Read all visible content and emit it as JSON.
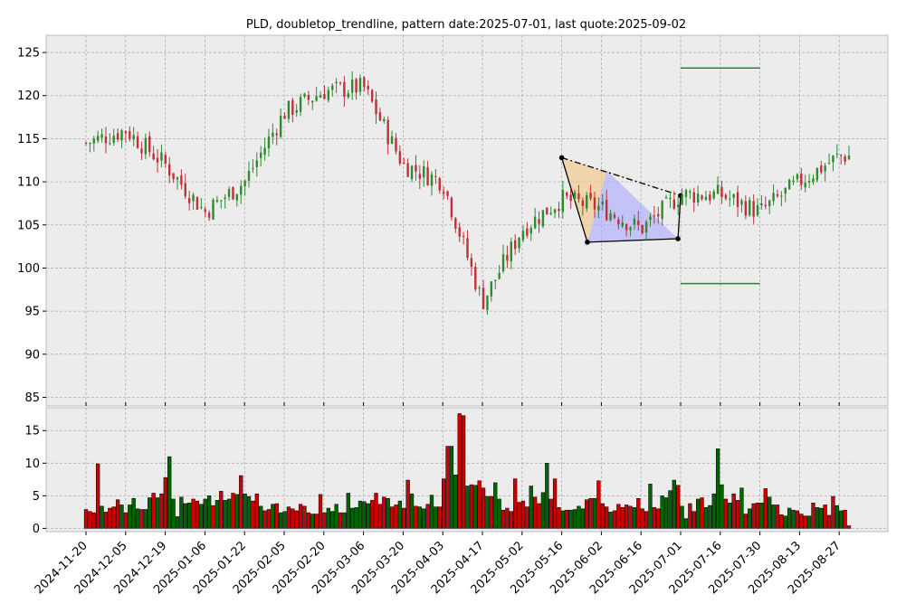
{
  "chart_data": [
    {
      "panel": "price",
      "type": "candlestick",
      "title": "PLD, doubletop_trendline, pattern date:2025-07-01, last quote:2025-09-02",
      "xlabel": "",
      "ylabel": "",
      "ylim": [
        84,
        127
      ],
      "yticks": [
        85,
        90,
        95,
        100,
        105,
        110,
        115,
        120,
        125
      ],
      "grid": true,
      "dates": [
        "2024-11-20",
        "2024-12-05",
        "2024-12-19",
        "2025-01-06",
        "2025-01-22",
        "2025-02-05",
        "2025-02-20",
        "2025-03-06",
        "2025-03-20",
        "2025-04-03",
        "2025-04-17",
        "2025-05-02",
        "2025-05-16",
        "2025-06-02",
        "2025-06-16",
        "2025-07-01",
        "2025-07-16",
        "2025-07-30",
        "2025-08-13",
        "2025-08-27"
      ],
      "closes": [
        114.5,
        116.0,
        112.0,
        106.5,
        110.0,
        118.0,
        120.5,
        121.0,
        112.0,
        110.0,
        96.0,
        104.5,
        108.0,
        107.0,
        104.5,
        108.5,
        108.5,
        106.5,
        110.0,
        113.0
      ],
      "pattern_points": [
        {
          "date": "2025-05-16",
          "value": 112.8
        },
        {
          "date": "2025-05-27",
          "value": 103.0
        },
        {
          "date": "2025-06-30",
          "value": 103.4
        },
        {
          "date": "2025-07-01",
          "value": 108.4
        }
      ],
      "trendline": {
        "start": {
          "date": "2025-05-16",
          "value": 112.8
        },
        "end": {
          "date": "2025-07-01",
          "value": 108.4
        }
      },
      "target_upper": 123.2,
      "target_lower": 98.2,
      "tick_labels": [
        "2024-11-20",
        "2024-12-05",
        "2024-12-19",
        "2025-01-06",
        "2025-01-22",
        "2025-02-05",
        "2025-02-20",
        "2025-03-06",
        "2025-03-20",
        "2025-04-03",
        "2025-04-17",
        "2025-05-02",
        "2025-05-16",
        "2025-06-02",
        "2025-06-16",
        "2025-07-01",
        "2025-07-16",
        "2025-07-30",
        "2025-08-13",
        "2025-08-27"
      ]
    },
    {
      "panel": "volume",
      "type": "bar",
      "ylim": [
        -0.5,
        18.5
      ],
      "yticks": [
        0,
        5,
        10,
        15
      ],
      "volumes": [
        2.9,
        2.6,
        2.4,
        9.9,
        3.4,
        2.5,
        3.1,
        3.3,
        4.4,
        3.6,
        2.4,
        3.6,
        4.6,
        3.0,
        2.9,
        2.9,
        4.7,
        5.4,
        4.7,
        5.3,
        7.8,
        11.0,
        4.5,
        1.8,
        4.8,
        3.8,
        3.9,
        4.5,
        4.2,
        3.7,
        4.5,
        5.0,
        3.5,
        4.3,
        5.7,
        4.3,
        4.5,
        5.4,
        5.2,
        8.1,
        5.3,
        4.9,
        4.2,
        5.3,
        3.4,
        2.7,
        2.9,
        3.7,
        3.8,
        2.4,
        2.6,
        3.3,
        3.0,
        2.7,
        3.7,
        3.4,
        2.4,
        2.2,
        2.2,
        5.2,
        2.4,
        3.1,
        2.6,
        3.7,
        2.4,
        2.4,
        5.4,
        3.1,
        3.2,
        4.2,
        4.1,
        3.8,
        4.3,
        5.4,
        3.7,
        4.8,
        4.6,
        3.3,
        3.6,
        4.2,
        3.1,
        7.4,
        5.3,
        3.4,
        3.3,
        3.0,
        3.7,
        5.1,
        3.3,
        3.3,
        7.6,
        12.6,
        12.6,
        8.2,
        17.6,
        17.3,
        6.5,
        6.7,
        6.6,
        7.3,
        6.2,
        4.9,
        4.9,
        7.0,
        4.5,
        2.8,
        3.1,
        2.6,
        7.6,
        4.0,
        4.2,
        3.3,
        6.5,
        4.8,
        3.8,
        5.5,
        10.0,
        4.5,
        7.6,
        3.2,
        2.7,
        2.8,
        2.8,
        2.9,
        3.4,
        3.0,
        4.4,
        4.6,
        4.6,
        7.3,
        3.8,
        3.3,
        2.5,
        2.7,
        3.7,
        3.2,
        3.6,
        3.4,
        3.2,
        4.6,
        3.0,
        2.6,
        6.8,
        3.2,
        3.0,
        5.0,
        4.7,
        5.8,
        7.4,
        6.6,
        3.4,
        1.5,
        3.8,
        2.6,
        4.5,
        4.7,
        3.2,
        3.5,
        5.3,
        12.2,
        6.7,
        4.5,
        3.9,
        5.3,
        4.3,
        6.2,
        2.2,
        3.0,
        3.8,
        3.9,
        3.9,
        6.1,
        4.8,
        3.6,
        3.6,
        2.1,
        1.9,
        3.1,
        2.8,
        2.7,
        2.2,
        1.9,
        1.9,
        3.9,
        3.2,
        3.1,
        3.6,
        2.0,
        4.9,
        3.5,
        2.7,
        2.8,
        0.4
      ],
      "up_color": "#006400",
      "down_color": "#cc0000"
    }
  ]
}
